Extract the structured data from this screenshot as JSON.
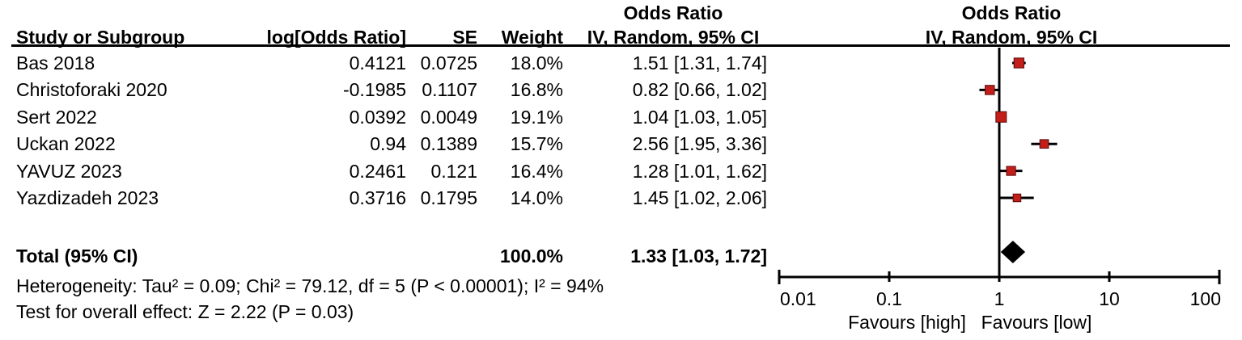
{
  "chart_data": {
    "type": "forest",
    "effect_measure_header": "Odds Ratio",
    "method_header": "IV, Random, 95% CI",
    "columns": {
      "study": "Study or Subgroup",
      "log_or": "log[Odds Ratio]",
      "se": "SE",
      "weight": "Weight"
    },
    "studies": [
      {
        "name": "Bas 2018",
        "log_or": "0.4121",
        "se": "0.0725",
        "weight": "18.0%",
        "weight_pct": 18.0,
        "or_ci_label": "1.51 [1.31, 1.74]",
        "or": 1.51,
        "ci_low": 1.31,
        "ci_high": 1.74
      },
      {
        "name": "Christoforaki 2020",
        "log_or": "-0.1985",
        "se": "0.1107",
        "weight": "16.8%",
        "weight_pct": 16.8,
        "or_ci_label": "0.82 [0.66, 1.02]",
        "or": 0.82,
        "ci_low": 0.66,
        "ci_high": 1.02
      },
      {
        "name": "Sert 2022",
        "log_or": "0.0392",
        "se": "0.0049",
        "weight": "19.1%",
        "weight_pct": 19.1,
        "or_ci_label": "1.04 [1.03, 1.05]",
        "or": 1.04,
        "ci_low": 1.03,
        "ci_high": 1.05
      },
      {
        "name": "Uckan 2022",
        "log_or": "0.94",
        "se": "0.1389",
        "weight": "15.7%",
        "weight_pct": 15.7,
        "or_ci_label": "2.56 [1.95, 3.36]",
        "or": 2.56,
        "ci_low": 1.95,
        "ci_high": 3.36
      },
      {
        "name": "YAVUZ 2023",
        "log_or": "0.2461",
        "se": "0.121",
        "weight": "16.4%",
        "weight_pct": 16.4,
        "or_ci_label": "1.28 [1.01, 1.62]",
        "or": 1.28,
        "ci_low": 1.01,
        "ci_high": 1.62
      },
      {
        "name": "Yazdizadeh 2023",
        "log_or": "0.3716",
        "se": "0.1795",
        "weight": "14.0%",
        "weight_pct": 14.0,
        "or_ci_label": "1.45 [1.02, 2.06]",
        "or": 1.45,
        "ci_low": 1.02,
        "ci_high": 2.06
      }
    ],
    "total": {
      "label": "Total (95% CI)",
      "weight": "100.0%",
      "or_ci_label": "1.33 [1.03, 1.72]",
      "or": 1.33,
      "ci_low": 1.03,
      "ci_high": 1.72
    },
    "heterogeneity": "Heterogeneity: Tau² = 0.09; Chi² = 79.12, df = 5 (P < 0.00001); I² = 94%",
    "overall_effect": "Test for overall effect: Z = 2.22 (P = 0.03)",
    "axis": {
      "scale": "log10",
      "range": [
        0.01,
        100
      ],
      "ticks": [
        0.01,
        0.1,
        1,
        10,
        100
      ],
      "tick_labels": [
        "0.01",
        "0.1",
        "1",
        "10",
        "100"
      ],
      "favours_left": "Favours [high]",
      "favours_right": "Favours [low]"
    },
    "colors": {
      "marker_fill": "#C41E1A",
      "marker_border": "#5A0A0A",
      "diamond": "#000000",
      "line": "#000000",
      "text": "#000000"
    }
  }
}
